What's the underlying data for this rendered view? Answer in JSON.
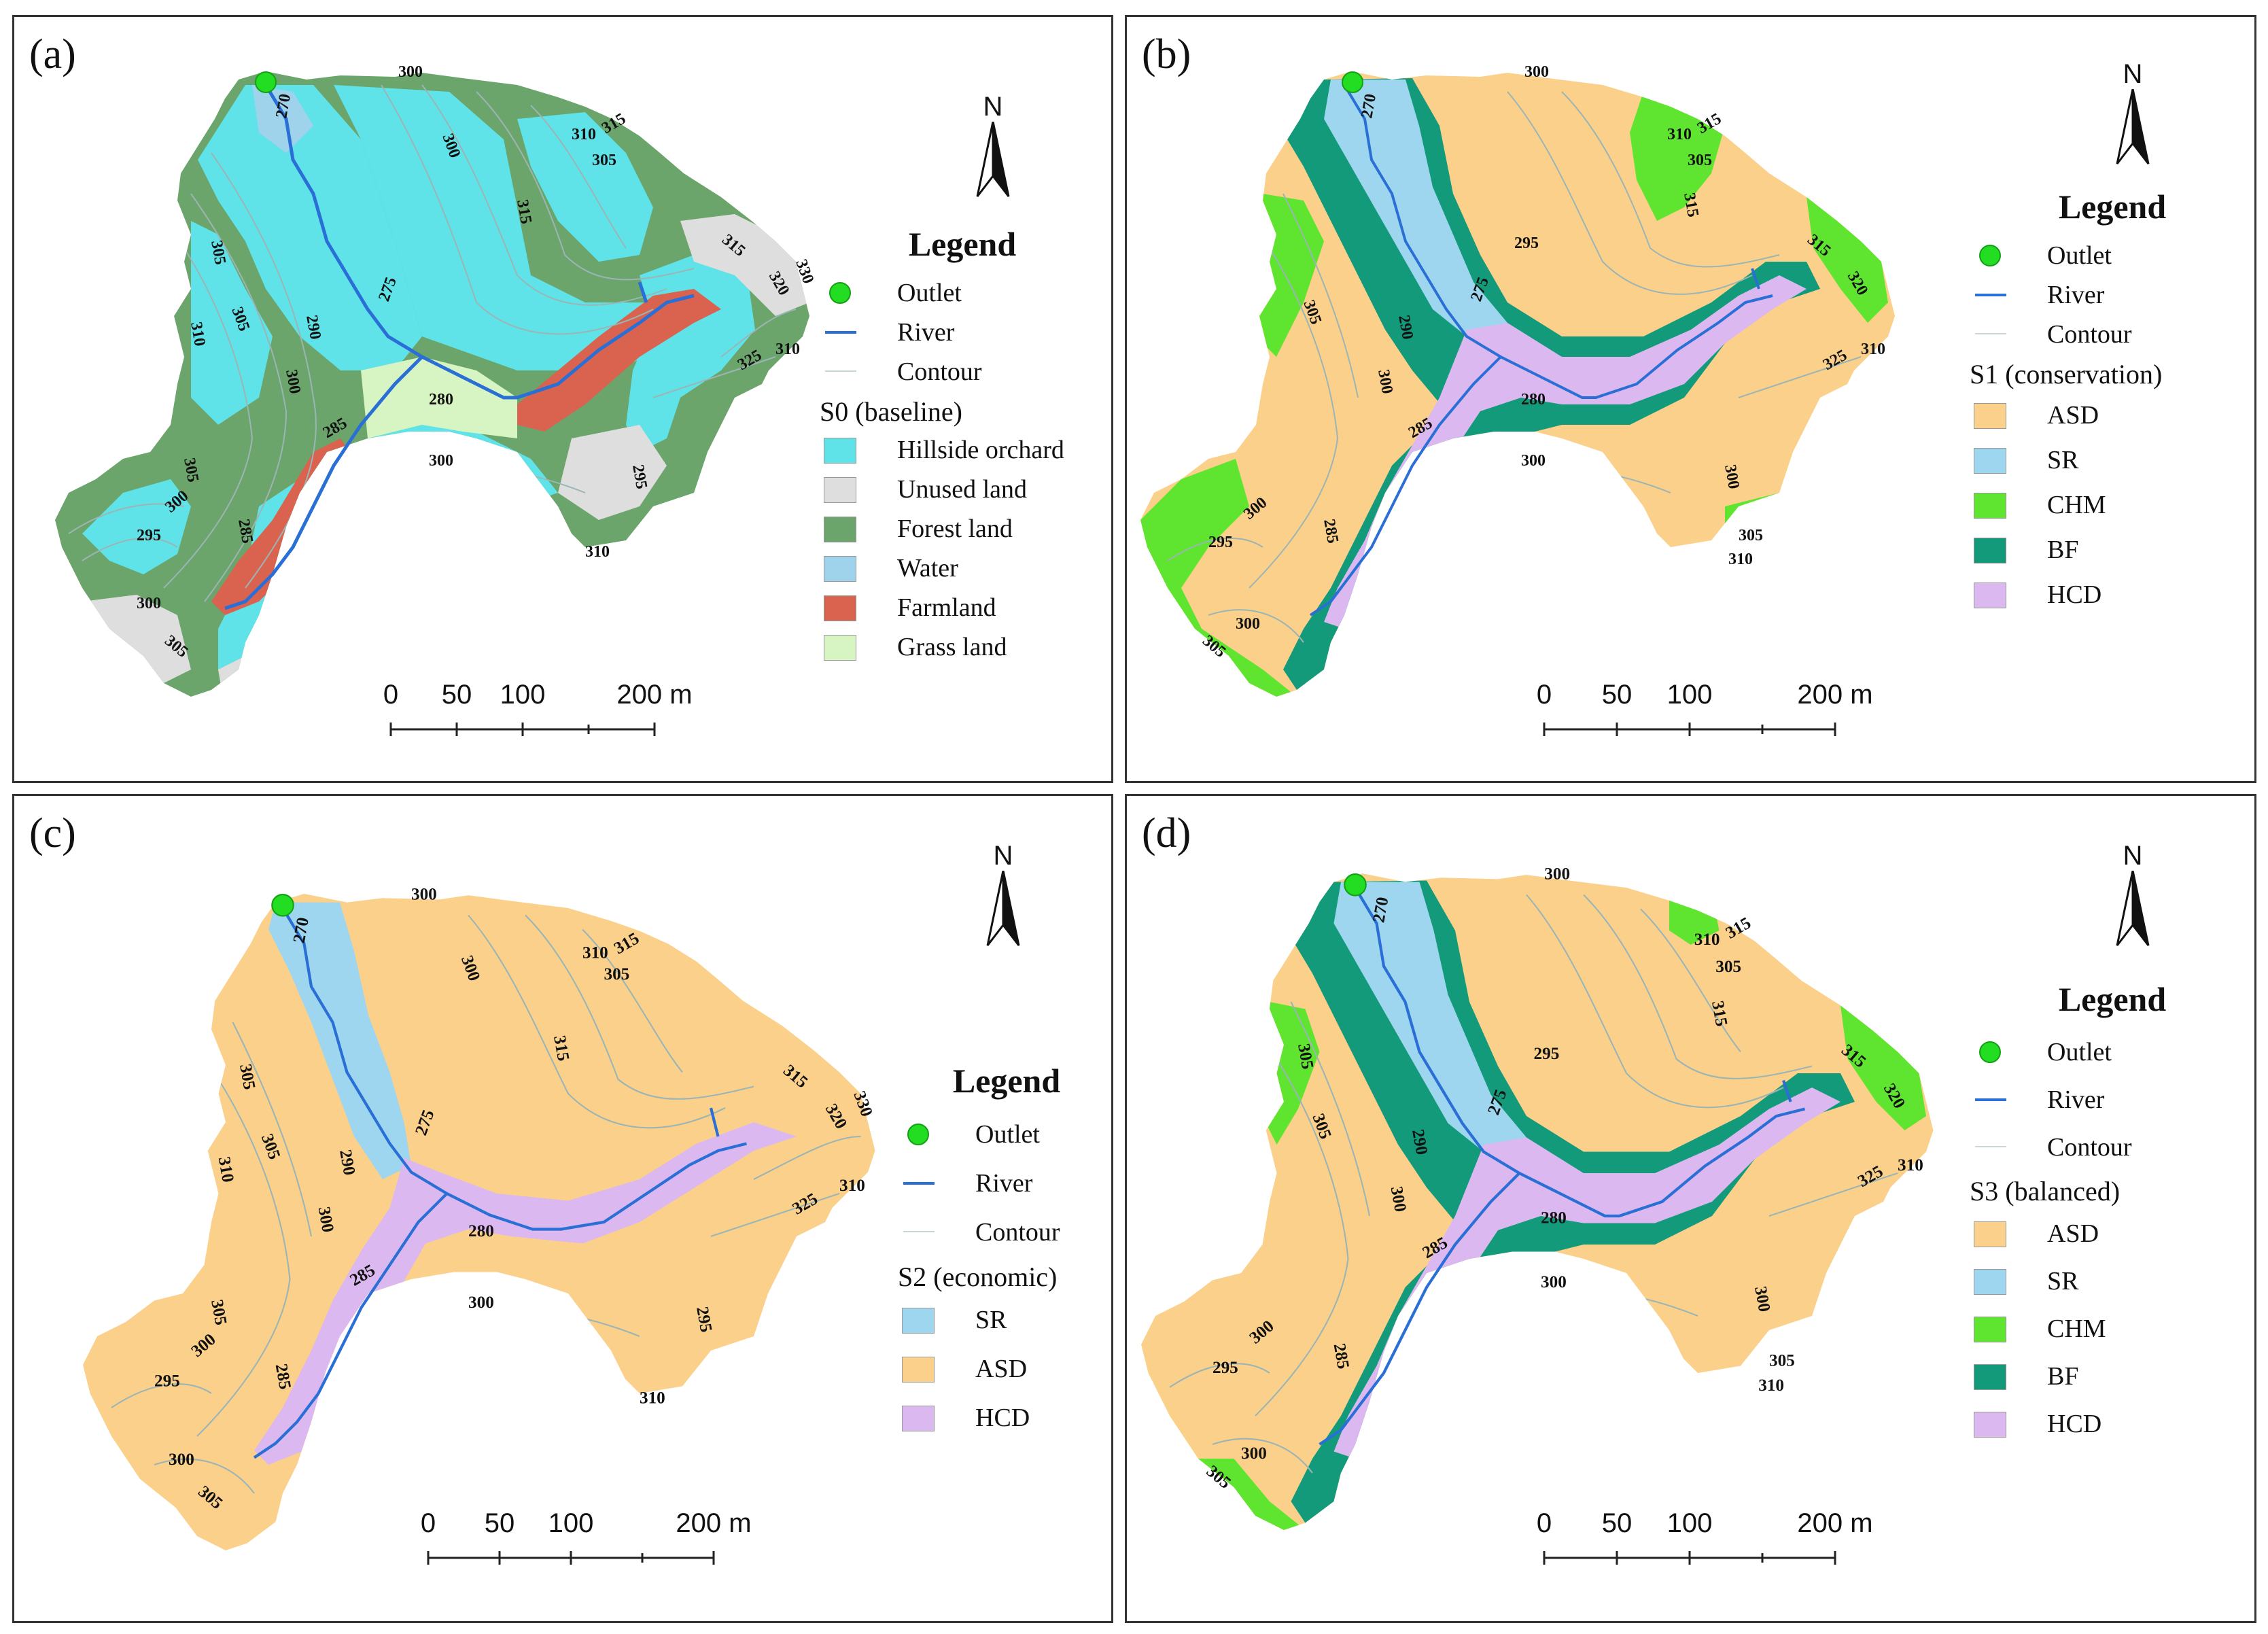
{
  "colors": {
    "hillside_orchard": "#5fe3e8",
    "unused_land": "#dedede",
    "forest_land": "#6ba56b",
    "water": "#9fd3ec",
    "farmland": "#d9634f",
    "grass_land": "#d6f5c2",
    "asd": "#fbd08a",
    "sr": "#9fd6ef",
    "chm": "#5fe52f",
    "bf": "#139a7a",
    "hcd": "#dcb8f0",
    "outlet": "#22dd22",
    "river": "#2a6fd6",
    "contour": "#9bb5b5"
  },
  "common": {
    "north_label": "N",
    "legend_title": "Legend",
    "outlet_label": "Outlet",
    "river_label": "River",
    "contour_label": "Contour",
    "scale_labels": [
      "0",
      "50",
      "100",
      "200 m"
    ],
    "contour_values": [
      "300",
      "270",
      "290",
      "310",
      "315",
      "305",
      "320",
      "330",
      "325",
      "295",
      "275",
      "280",
      "285"
    ]
  },
  "panels": [
    {
      "label": "(a)",
      "scheme_title": "S0 (baseline)",
      "classes": [
        {
          "name": "Hillside orchard",
          "color": "#5fe3e8"
        },
        {
          "name": "Unused land",
          "color": "#dedede"
        },
        {
          "name": "Forest land",
          "color": "#6ba56b"
        },
        {
          "name": "Water",
          "color": "#9fd3ec"
        },
        {
          "name": "Farmland",
          "color": "#d9634f"
        },
        {
          "name": "Grass land",
          "color": "#d6f5c2"
        }
      ]
    },
    {
      "label": "(b)",
      "scheme_title": "S1 (conservation)",
      "classes": [
        {
          "name": "ASD",
          "color": "#fbd08a"
        },
        {
          "name": "SR",
          "color": "#9fd6ef"
        },
        {
          "name": "CHM",
          "color": "#5fe52f"
        },
        {
          "name": "BF",
          "color": "#139a7a"
        },
        {
          "name": "HCD",
          "color": "#dcb8f0"
        }
      ]
    },
    {
      "label": "(c)",
      "scheme_title": "S2 (economic)",
      "classes": [
        {
          "name": "SR",
          "color": "#9fd6ef"
        },
        {
          "name": "ASD",
          "color": "#fbd08a"
        },
        {
          "name": "HCD",
          "color": "#dcb8f0"
        }
      ]
    },
    {
      "label": "(d)",
      "scheme_title": "S3 (balanced)",
      "classes": [
        {
          "name": "ASD",
          "color": "#fbd08a"
        },
        {
          "name": "SR",
          "color": "#9fd6ef"
        },
        {
          "name": "CHM",
          "color": "#5fe52f"
        },
        {
          "name": "BF",
          "color": "#139a7a"
        },
        {
          "name": "HCD",
          "color": "#dcb8f0"
        }
      ]
    }
  ]
}
